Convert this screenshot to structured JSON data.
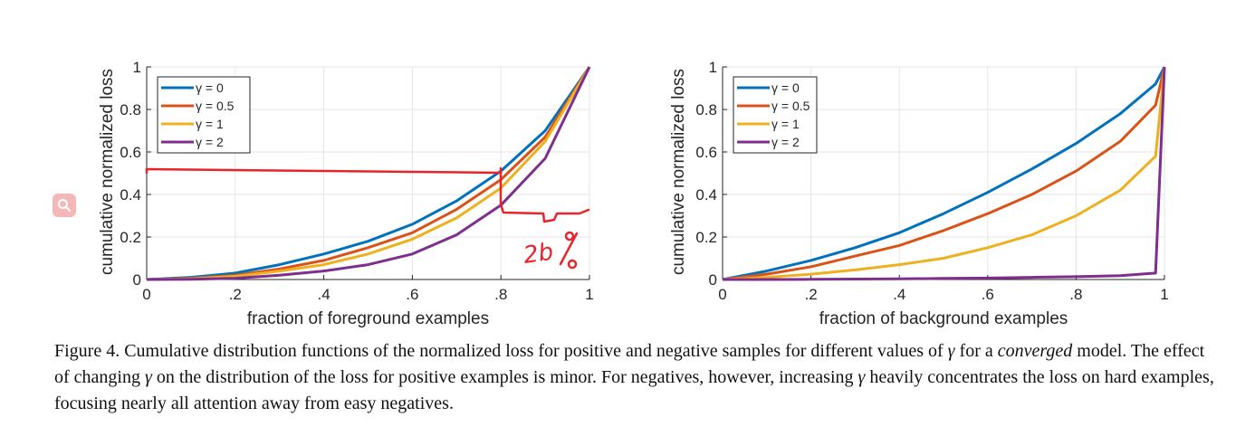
{
  "chart_data": [
    {
      "type": "line",
      "xlabel": "fraction of foreground examples",
      "ylabel": "cumulative normalized loss",
      "xlim": [
        0,
        1
      ],
      "ylim": [
        0,
        1
      ],
      "xticks": [
        0,
        0.2,
        0.4,
        0.6,
        0.8,
        1
      ],
      "xtick_labels": [
        "0",
        ".2",
        ".4",
        ".6",
        ".8",
        "1"
      ],
      "yticks": [
        0,
        0.2,
        0.4,
        0.6,
        0.8,
        1
      ],
      "ytick_labels": [
        "0",
        "0.2",
        "0.4",
        "0.6",
        "0.8",
        "1"
      ],
      "grid": true,
      "legend_position": "top-left",
      "x": [
        0,
        0.1,
        0.2,
        0.3,
        0.4,
        0.5,
        0.6,
        0.7,
        0.8,
        0.9,
        1
      ],
      "series": [
        {
          "name": "γ = 0",
          "color": "#0072BD",
          "values": [
            0,
            0.01,
            0.03,
            0.07,
            0.12,
            0.18,
            0.26,
            0.37,
            0.51,
            0.7,
            1
          ]
        },
        {
          "name": "γ = 0.5",
          "color": "#D95319",
          "values": [
            0,
            0.005,
            0.02,
            0.05,
            0.09,
            0.15,
            0.22,
            0.33,
            0.47,
            0.67,
            1
          ]
        },
        {
          "name": "γ = 1",
          "color": "#EDB120",
          "values": [
            0,
            0.003,
            0.015,
            0.04,
            0.07,
            0.12,
            0.19,
            0.29,
            0.43,
            0.65,
            1
          ]
        },
        {
          "name": "γ = 2",
          "color": "#7E2F8E",
          "values": [
            0,
            0.001,
            0.006,
            0.02,
            0.04,
            0.07,
            0.12,
            0.21,
            0.35,
            0.57,
            1
          ]
        }
      ]
    },
    {
      "type": "line",
      "xlabel": "fraction of background examples",
      "ylabel": "cumulative normalized loss",
      "xlim": [
        0,
        1
      ],
      "ylim": [
        0,
        1
      ],
      "xticks": [
        0,
        0.2,
        0.4,
        0.6,
        0.8,
        1
      ],
      "xtick_labels": [
        "0",
        ".2",
        ".4",
        ".6",
        ".8",
        "1"
      ],
      "yticks": [
        0,
        0.2,
        0.4,
        0.6,
        0.8,
        1
      ],
      "ytick_labels": [
        "0",
        "0.2",
        "0.4",
        "0.6",
        "0.8",
        "1"
      ],
      "grid": true,
      "legend_position": "top-left",
      "x": [
        0,
        0.1,
        0.2,
        0.3,
        0.4,
        0.5,
        0.6,
        0.7,
        0.8,
        0.9,
        0.98,
        1
      ],
      "series": [
        {
          "name": "γ = 0",
          "color": "#0072BD",
          "values": [
            0,
            0.04,
            0.09,
            0.15,
            0.22,
            0.31,
            0.41,
            0.52,
            0.64,
            0.78,
            0.92,
            1
          ]
        },
        {
          "name": "γ = 0.5",
          "color": "#D95319",
          "values": [
            0,
            0.025,
            0.06,
            0.11,
            0.16,
            0.23,
            0.31,
            0.4,
            0.51,
            0.65,
            0.82,
            1
          ]
        },
        {
          "name": "γ = 1",
          "color": "#EDB120",
          "values": [
            0,
            0.01,
            0.025,
            0.045,
            0.07,
            0.1,
            0.15,
            0.21,
            0.3,
            0.42,
            0.58,
            1
          ]
        },
        {
          "name": "γ = 2",
          "color": "#7E2F8E",
          "values": [
            0,
            0.0,
            0.001,
            0.002,
            0.003,
            0.005,
            0.007,
            0.01,
            0.013,
            0.018,
            0.03,
            1
          ]
        }
      ]
    }
  ],
  "annotation": {
    "color": "#E8242A",
    "note_text": "2b"
  },
  "caption": {
    "prefix": "Figure 4. Cumulative distribution functions of the normalized loss for positive and negative samples for different values of",
    "gamma": "γ",
    "mid1": "for a",
    "converged": "converged",
    "mid2": "model. The effect of changing",
    "mid3": "on the distribution of the loss for positive examples is minor. For negatives, however, increasing",
    "suffix": "heavily concentrates the loss on hard examples, focusing nearly all attention away from easy negatives."
  }
}
